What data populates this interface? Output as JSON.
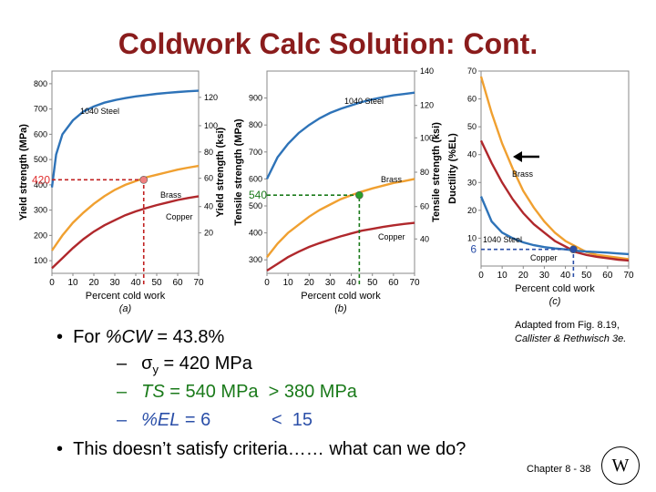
{
  "slide": {
    "title": "Coldwork Calc Solution: Cont.",
    "source_line1": "Adapted from Fig. 8.19,",
    "source_line2": "Callister & Rethwisch 3e.",
    "bullet1_prefix": "For ",
    "bullet1_var": "%CW",
    "bullet1_value": " = 43.8%",
    "sub1_dash": "–",
    "sub1_sym": "σ",
    "sub1_subscript": "y",
    "sub1_value": " = 420 MPa",
    "sub2_dash": "–",
    "sub2_var": "TS",
    "sub2_value": " = 540 MPa  > 380 MPa",
    "sub3_dash": "–",
    "sub3_var": "%EL",
    "sub3_value": " = 6            <  15",
    "bullet2": "This doesn’t satisfy criteria…… what can we do?",
    "footer": "Chapter 8 -  38",
    "logo_text": "W"
  },
  "chart_data": [
    {
      "type": "line",
      "panel_label": "(a)",
      "xlabel": "Percent cold work",
      "ylabel": "Yield strength (MPa)",
      "ylabel_right": "Yield strength (ksi)",
      "xlim": [
        0,
        70
      ],
      "ylim": [
        50,
        850
      ],
      "xticks": [
        "0",
        "10",
        "20",
        "30",
        "40",
        "50",
        "60",
        "70"
      ],
      "yticks": [
        "100",
        "200",
        "300",
        "400",
        "500",
        "600",
        "700",
        "800"
      ],
      "yticks_right": [
        "20",
        "40",
        "60",
        "80",
        "100",
        "120"
      ],
      "series": [
        {
          "name": "1040 Steel",
          "color": "#2e73b8",
          "x": [
            0,
            2,
            5,
            10,
            15,
            20,
            25,
            30,
            35,
            40,
            45,
            50,
            55,
            60,
            65,
            70
          ],
          "y": [
            390,
            520,
            600,
            655,
            690,
            710,
            725,
            735,
            743,
            750,
            755,
            760,
            764,
            767,
            770,
            772
          ]
        },
        {
          "name": "Brass",
          "color": "#f0a030",
          "x": [
            0,
            5,
            10,
            15,
            20,
            25,
            30,
            35,
            40,
            45,
            50,
            55,
            60,
            65,
            70
          ],
          "y": [
            140,
            200,
            250,
            290,
            325,
            355,
            380,
            400,
            415,
            430,
            440,
            450,
            460,
            468,
            475
          ]
        },
        {
          "name": "Copper",
          "color": "#b0282c",
          "x": [
            0,
            5,
            10,
            15,
            20,
            25,
            30,
            35,
            40,
            45,
            50,
            55,
            60,
            65,
            70
          ],
          "y": [
            70,
            110,
            150,
            185,
            215,
            240,
            260,
            280,
            295,
            308,
            320,
            330,
            340,
            348,
            355
          ]
        }
      ],
      "marker": {
        "x": 43.8,
        "y": 420,
        "color": "#f08080"
      },
      "annotation": "420",
      "annotation_color": "#e03030"
    },
    {
      "type": "line",
      "panel_label": "(b)",
      "xlabel": "Percent cold work",
      "ylabel": "Tensile strength (MPa)",
      "ylabel_right": "Tensile strength (ksi)",
      "xlim": [
        0,
        70
      ],
      "ylim": [
        250,
        1000
      ],
      "xticks": [
        "0",
        "10",
        "20",
        "30",
        "40",
        "50",
        "60",
        "70"
      ],
      "yticks": [
        "300",
        "400",
        "500",
        "600",
        "700",
        "800",
        "900"
      ],
      "yticks_right": [
        "40",
        "60",
        "80",
        "100",
        "120",
        "140"
      ],
      "series": [
        {
          "name": "1040 Steel",
          "color": "#2e73b8",
          "x": [
            0,
            5,
            10,
            15,
            20,
            25,
            30,
            35,
            40,
            45,
            50,
            55,
            60,
            65,
            70
          ],
          "y": [
            600,
            680,
            730,
            770,
            800,
            825,
            845,
            860,
            873,
            885,
            895,
            903,
            910,
            915,
            920
          ]
        },
        {
          "name": "Brass",
          "color": "#f0a030",
          "x": [
            0,
            5,
            10,
            15,
            20,
            25,
            30,
            35,
            40,
            45,
            50,
            55,
            60,
            65,
            70
          ],
          "y": [
            310,
            360,
            400,
            430,
            460,
            485,
            505,
            525,
            540,
            553,
            565,
            575,
            585,
            592,
            600
          ]
        },
        {
          "name": "Copper",
          "color": "#b0282c",
          "x": [
            0,
            5,
            10,
            15,
            20,
            25,
            30,
            35,
            40,
            45,
            50,
            55,
            60,
            65,
            70
          ],
          "y": [
            260,
            285,
            310,
            330,
            348,
            362,
            375,
            387,
            398,
            408,
            415,
            422,
            428,
            433,
            437
          ]
        }
      ],
      "marker": {
        "x": 43.8,
        "y": 540,
        "color": "#2aa02a"
      },
      "annotation": "540",
      "annotation_color": "#1a7a1a"
    },
    {
      "type": "line",
      "panel_label": "(c)",
      "xlabel": "Percent cold work",
      "ylabel": "Ductility (%EL)",
      "xlim": [
        0,
        70
      ],
      "ylim": [
        0,
        70
      ],
      "xticks": [
        "0",
        "10",
        "20",
        "30",
        "40",
        "50",
        "60",
        "70"
      ],
      "yticks": [
        "10",
        "20",
        "30",
        "40",
        "50",
        "60",
        "70"
      ],
      "series": [
        {
          "name": "Brass",
          "color": "#f0a030",
          "x": [
            0,
            5,
            10,
            15,
            20,
            25,
            30,
            35,
            40,
            45,
            50,
            55,
            60,
            65,
            70
          ],
          "y": [
            68,
            55,
            44,
            35,
            27,
            21,
            16,
            12,
            9,
            7,
            5,
            4,
            3.5,
            3,
            2.5
          ]
        },
        {
          "name": "Copper",
          "color": "#b0282c",
          "x": [
            0,
            5,
            10,
            15,
            20,
            25,
            30,
            35,
            40,
            45,
            50,
            55,
            60,
            65,
            70
          ],
          "y": [
            45,
            37,
            30,
            24,
            19,
            15,
            12,
            9,
            7,
            5,
            4,
            3.3,
            2.8,
            2.3,
            2
          ]
        },
        {
          "name": "1040 Steel",
          "color": "#2e73b8",
          "x": [
            0,
            5,
            10,
            15,
            20,
            25,
            30,
            35,
            40,
            45,
            50,
            55,
            60,
            65,
            70
          ],
          "y": [
            25,
            16,
            12,
            10,
            8.5,
            7.5,
            6.8,
            6.3,
            6,
            5.5,
            5.2,
            5,
            4.8,
            4.5,
            4.3
          ]
        }
      ],
      "marker": {
        "x": 43.8,
        "y": 6,
        "color": "#2b4fa8"
      },
      "annotation": "6",
      "annotation_color": "#2b4fa8"
    }
  ]
}
